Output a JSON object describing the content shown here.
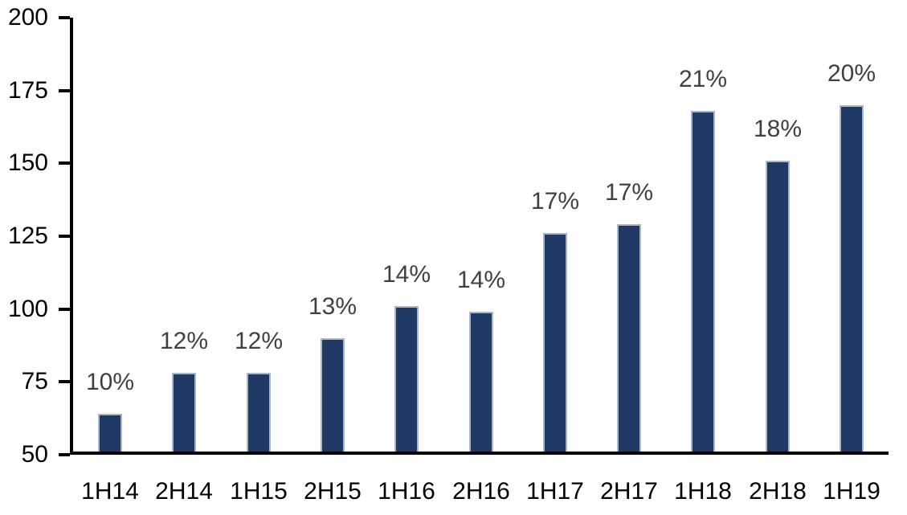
{
  "chart_data": {
    "type": "bar",
    "title": "",
    "xlabel": "",
    "ylabel": "",
    "categories": [
      "1H14",
      "2H14",
      "1H15",
      "2H15",
      "1H16",
      "2H16",
      "1H17",
      "2H17",
      "1H18",
      "2H18",
      "1H19"
    ],
    "values": [
      64,
      78,
      78,
      90,
      101,
      99,
      126,
      129,
      168,
      151,
      170
    ],
    "bar_labels": [
      "10%",
      "12%",
      "12%",
      "13%",
      "14%",
      "14%",
      "17%",
      "17%",
      "21%",
      "18%",
      "20%"
    ],
    "ylim": [
      50,
      200
    ],
    "yticks": [
      50,
      75,
      100,
      125,
      150,
      175,
      200
    ],
    "grid": false,
    "legend": "none",
    "colors": {
      "bar_fill": "#203864",
      "bar_border": "#A9B5C8",
      "data_label": "#404040",
      "axis": "#000000"
    }
  }
}
